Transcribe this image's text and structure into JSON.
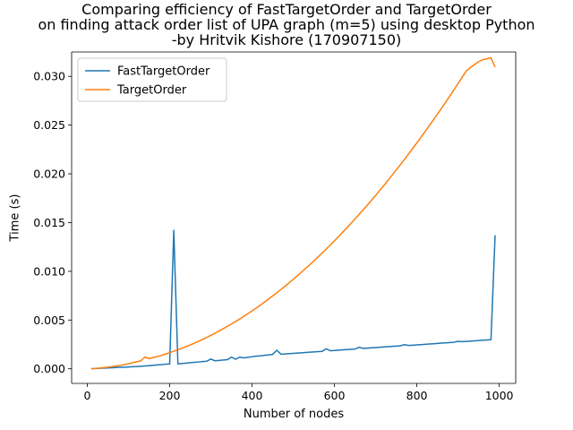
{
  "chart_data": {
    "type": "line",
    "title_lines": [
      "Comparing efficiency of FastTargetOrder and TargetOrder",
      "on finding attack order list of UPA graph (m=5) using desktop Python",
      "-by Hritvik Kishore (170907150)"
    ],
    "xlabel": "Number of nodes",
    "ylabel": "Time (s)",
    "xlim": [
      -38,
      1040
    ],
    "ylim": [
      -0.0015,
      0.0325
    ],
    "xticks": [
      0,
      200,
      400,
      600,
      800,
      1000
    ],
    "xtick_labels": [
      "0",
      "200",
      "400",
      "600",
      "800",
      "1000"
    ],
    "yticks": [
      0.0,
      0.005,
      0.01,
      0.015,
      0.02,
      0.025,
      0.03
    ],
    "ytick_labels": [
      "0.000",
      "0.005",
      "0.010",
      "0.015",
      "0.020",
      "0.025",
      "0.030"
    ],
    "grid": false,
    "legend_position": "upper-left",
    "series": [
      {
        "name": "FastTargetOrder",
        "color": "#1f77b4",
        "x": [
          10,
          20,
          30,
          40,
          50,
          60,
          70,
          80,
          90,
          100,
          110,
          120,
          130,
          140,
          150,
          160,
          170,
          180,
          190,
          200,
          210,
          220,
          230,
          240,
          250,
          260,
          270,
          280,
          290,
          300,
          310,
          320,
          330,
          340,
          350,
          360,
          370,
          380,
          390,
          400,
          410,
          420,
          430,
          440,
          450,
          460,
          470,
          480,
          490,
          500,
          510,
          520,
          530,
          540,
          550,
          560,
          570,
          580,
          590,
          600,
          610,
          620,
          630,
          640,
          650,
          660,
          670,
          680,
          690,
          700,
          710,
          720,
          730,
          740,
          750,
          760,
          770,
          780,
          790,
          800,
          810,
          820,
          830,
          840,
          850,
          860,
          870,
          880,
          890,
          900,
          910,
          920,
          930,
          940,
          950,
          960,
          970,
          980,
          990
        ],
        "y": [
          1e-05,
          3e-05,
          5e-05,
          7e-05,
          9e-05,
          0.00011,
          0.00013,
          0.00015,
          0.00017,
          0.00019,
          0.00021,
          0.00023,
          0.00026,
          0.00029,
          0.00032,
          0.00036,
          0.0004,
          0.00043,
          0.00047,
          0.0005,
          0.0142,
          0.0005,
          0.00054,
          0.00058,
          0.00062,
          0.00066,
          0.0007,
          0.00074,
          0.00078,
          0.001,
          0.00082,
          0.00086,
          0.0009,
          0.00094,
          0.0012,
          0.00098,
          0.0012,
          0.00112,
          0.00118,
          0.00124,
          0.0013,
          0.00132,
          0.00138,
          0.00142,
          0.00148,
          0.0019,
          0.0015,
          0.00152,
          0.00155,
          0.00158,
          0.00161,
          0.00164,
          0.00167,
          0.0017,
          0.00173,
          0.00176,
          0.00179,
          0.00205,
          0.00185,
          0.00188,
          0.00191,
          0.00194,
          0.00197,
          0.002,
          0.00203,
          0.00221,
          0.00209,
          0.00212,
          0.00215,
          0.00218,
          0.00221,
          0.00224,
          0.00227,
          0.0023,
          0.00233,
          0.00236,
          0.00248,
          0.00239,
          0.00242,
          0.00245,
          0.00248,
          0.00251,
          0.00254,
          0.00257,
          0.0026,
          0.00263,
          0.00266,
          0.00269,
          0.00272,
          0.00282,
          0.00278,
          0.00281,
          0.00284,
          0.00287,
          0.0029,
          0.00293,
          0.00296,
          0.00299,
          0.0137
        ]
      },
      {
        "name": "TargetOrder",
        "color": "#ff7f0e",
        "x": [
          10,
          20,
          30,
          40,
          50,
          60,
          70,
          80,
          90,
          100,
          110,
          120,
          130,
          140,
          150,
          160,
          170,
          180,
          190,
          200,
          210,
          220,
          230,
          240,
          250,
          260,
          270,
          280,
          290,
          300,
          310,
          320,
          330,
          340,
          350,
          360,
          370,
          380,
          390,
          400,
          410,
          420,
          430,
          440,
          450,
          460,
          470,
          480,
          490,
          500,
          510,
          520,
          530,
          540,
          550,
          560,
          570,
          580,
          590,
          600,
          610,
          620,
          630,
          640,
          650,
          660,
          670,
          680,
          690,
          700,
          710,
          720,
          730,
          740,
          750,
          760,
          770,
          780,
          790,
          800,
          810,
          820,
          830,
          840,
          850,
          860,
          870,
          880,
          890,
          900,
          910,
          920,
          930,
          940,
          950,
          960,
          970,
          980,
          990
        ],
        "y": [
          1e-05,
          4e-05,
          8e-05,
          0.00012,
          0.00017,
          0.00022,
          0.00028,
          0.00035,
          0.00043,
          0.00052,
          0.00062,
          0.00072,
          0.00082,
          0.0012,
          0.00105,
          0.00115,
          0.00125,
          0.00138,
          0.00151,
          0.00165,
          0.0018,
          0.00195,
          0.00211,
          0.00228,
          0.00245,
          0.00263,
          0.00282,
          0.00302,
          0.00322,
          0.00343,
          0.00365,
          0.00388,
          0.00411,
          0.00435,
          0.0046,
          0.00485,
          0.00511,
          0.00538,
          0.00566,
          0.00594,
          0.00623,
          0.00653,
          0.00684,
          0.00715,
          0.00747,
          0.0078,
          0.00813,
          0.00847,
          0.00882,
          0.00918,
          0.00954,
          0.00991,
          0.01029,
          0.01067,
          0.01106,
          0.01146,
          0.01187,
          0.01228,
          0.0127,
          0.01313,
          0.01356,
          0.014,
          0.01445,
          0.01491,
          0.01537,
          0.01584,
          0.01632,
          0.0168,
          0.01729,
          0.01779,
          0.0183,
          0.01881,
          0.01933,
          0.01986,
          0.02039,
          0.02093,
          0.02148,
          0.02204,
          0.0226,
          0.02317,
          0.02375,
          0.02433,
          0.02492,
          0.02552,
          0.02612,
          0.02673,
          0.02735,
          0.02798,
          0.02861,
          0.02925,
          0.0299,
          0.03055,
          0.0309,
          0.0312,
          0.0315,
          0.0317,
          0.0318,
          0.0319,
          0.03095
        ]
      }
    ]
  }
}
